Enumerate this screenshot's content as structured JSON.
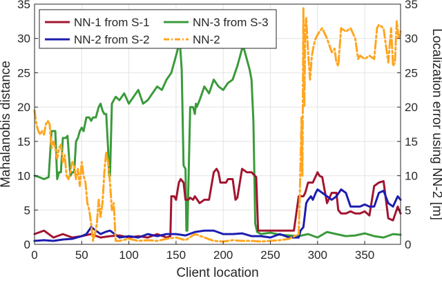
{
  "chart_data": {
    "type": "line",
    "title": "",
    "xlabel": "Client location",
    "ylabel_left": "Mahalanobis distance",
    "ylabel_right": "Localization error using NN-2 [m]",
    "xlim": [
      0,
      388
    ],
    "ylim_left": [
      0,
      35
    ],
    "ylim_right": [
      0,
      35
    ],
    "xticks": [
      "0",
      "50",
      "100",
      "150",
      "200",
      "250",
      "300",
      "350"
    ],
    "yticks_left": [
      "0",
      "5",
      "10",
      "15",
      "20",
      "25",
      "30",
      "35"
    ],
    "yticks_right": [
      "0",
      "5",
      "10",
      "15",
      "20",
      "25",
      "30",
      "35"
    ],
    "grid": true,
    "legend_position": "top-left",
    "series": [
      {
        "name": "NN-1 from S-1",
        "color": "#a2142f",
        "style": "solid",
        "axis": "left",
        "x": [
          0,
          10,
          20,
          30,
          40,
          50,
          60,
          70,
          80,
          90,
          100,
          110,
          120,
          130,
          140,
          144,
          145,
          148,
          150,
          153,
          155,
          158,
          160,
          163,
          165,
          168,
          170,
          175,
          180,
          185,
          190,
          193,
          195,
          197,
          200,
          203,
          205,
          210,
          213,
          215,
          220,
          225,
          230,
          235,
          237,
          240,
          245,
          250,
          255,
          260,
          265,
          270,
          275,
          280,
          285,
          287,
          290,
          295,
          300,
          302,
          305,
          310,
          315,
          320,
          322,
          325,
          330,
          335,
          340,
          345,
          350,
          355,
          360,
          365,
          370,
          375,
          380,
          385,
          388
        ],
        "y": [
          1.5,
          2,
          1,
          1.5,
          1,
          1.2,
          1.5,
          1,
          1.2,
          1.3,
          1,
          1.2,
          1,
          1.5,
          1,
          1.2,
          7,
          7,
          6.5,
          9,
          9.5,
          9,
          6.5,
          6.5,
          6.8,
          6.5,
          7,
          6,
          6.5,
          6.5,
          10.5,
          11,
          10.5,
          9,
          9,
          9,
          9.5,
          9.5,
          6.5,
          6.8,
          11,
          10.5,
          10.5,
          9.8,
          2,
          2,
          2,
          2,
          2,
          2,
          2,
          2,
          2,
          7,
          7,
          7.5,
          9,
          9,
          10.5,
          10,
          9.8,
          6,
          7.5,
          7.5,
          5,
          4.5,
          4.5,
          4.8,
          4.5,
          4.5,
          4.8,
          4.2,
          8.5,
          9,
          9.2,
          3.8,
          3.5,
          5.5,
          4.5
        ]
      },
      {
        "name": "NN-3 from S-3",
        "color": "#3a9a3a",
        "style": "solid",
        "axis": "left",
        "x": [
          0,
          5,
          10,
          15,
          18,
          20,
          22,
          24,
          26,
          28,
          30,
          33,
          35,
          38,
          40,
          42,
          44,
          46,
          48,
          50,
          52,
          55,
          58,
          60,
          62,
          65,
          68,
          70,
          72,
          74,
          76,
          78,
          79,
          80,
          82,
          84,
          86,
          90,
          95,
          100,
          105,
          110,
          115,
          120,
          125,
          130,
          135,
          140,
          145,
          150,
          152,
          154,
          156,
          158,
          160,
          161,
          162,
          165,
          168,
          170,
          171,
          172,
          175,
          180,
          185,
          190,
          195,
          200,
          205,
          210,
          215,
          220,
          222,
          225,
          228,
          230,
          232,
          234,
          236,
          240,
          250,
          260,
          270,
          280,
          290,
          300,
          310,
          320,
          330,
          340,
          350,
          360,
          370,
          380,
          388
        ],
        "y": [
          10,
          9.8,
          9.5,
          9.8,
          16.5,
          16.5,
          16.5,
          9.5,
          10.5,
          10.5,
          15.5,
          15.5,
          15.8,
          10,
          10.5,
          10.5,
          15,
          15.5,
          16.5,
          17,
          16.5,
          18.5,
          18.5,
          18,
          18.5,
          18.5,
          20,
          20.5,
          19.5,
          19,
          19,
          14,
          10,
          10,
          20.5,
          21,
          21.5,
          21,
          22,
          20.5,
          21.5,
          22.5,
          20.5,
          21,
          22,
          23,
          22.5,
          24,
          25,
          27.5,
          28.5,
          29.5,
          25.5,
          11.5,
          11,
          2,
          2,
          20,
          20,
          19,
          20.5,
          20,
          21,
          23,
          22,
          24,
          23,
          22.5,
          23.5,
          24,
          26,
          28.5,
          28.5,
          27,
          25.5,
          24,
          18,
          3,
          1.8,
          1.5,
          1.7,
          1.4,
          1.3,
          1.2,
          1.5,
          1,
          1.8,
          1.5,
          1.2,
          1.3,
          1.6,
          1.2,
          1,
          1.5,
          1.4
        ]
      },
      {
        "name": "NN-2 from S-2",
        "color": "#1c1cb0",
        "style": "solid",
        "axis": "left",
        "x": [
          0,
          10,
          20,
          30,
          40,
          50,
          55,
          60,
          65,
          70,
          75,
          80,
          85,
          90,
          100,
          110,
          120,
          130,
          140,
          150,
          160,
          170,
          180,
          190,
          200,
          210,
          220,
          230,
          240,
          250,
          260,
          270,
          280,
          282,
          285,
          288,
          290,
          293,
          295,
          298,
          300,
          305,
          310,
          315,
          320,
          325,
          330,
          335,
          340,
          345,
          350,
          355,
          360,
          365,
          370,
          375,
          380,
          385,
          388
        ],
        "y": [
          0.5,
          0.6,
          0.5,
          0.7,
          0.8,
          1.2,
          1.5,
          2.5,
          2,
          1.5,
          1.8,
          2,
          1.5,
          1,
          1.2,
          1,
          1.5,
          1.2,
          1.5,
          1.5,
          1.3,
          1.8,
          2,
          2,
          1.5,
          1.5,
          1.6,
          1.2,
          1.2,
          1,
          1.5,
          1,
          1,
          2,
          2.5,
          6,
          6.5,
          7,
          6.5,
          7.5,
          8,
          7.5,
          7,
          6.5,
          7,
          8,
          7.5,
          5.5,
          5.5,
          5.5,
          5.8,
          5.5,
          5.5,
          7.5,
          7.8,
          6,
          5.5,
          7,
          6.5
        ]
      },
      {
        "name": "NN-2",
        "color": "#ffa51f",
        "style": "dashed",
        "axis": "right",
        "x": [
          0,
          2,
          4,
          6,
          8,
          10,
          12,
          14,
          16,
          18,
          20,
          22,
          24,
          26,
          28,
          30,
          32,
          34,
          36,
          38,
          40,
          42,
          44,
          46,
          48,
          50,
          52,
          54,
          56,
          58,
          60,
          62,
          64,
          66,
          68,
          70,
          72,
          74,
          76,
          78,
          80,
          82,
          84,
          86,
          90,
          100,
          110,
          120,
          130,
          140,
          150,
          160,
          170,
          180,
          190,
          200,
          210,
          220,
          230,
          240,
          250,
          260,
          270,
          280,
          281,
          282,
          283,
          284,
          285,
          286,
          287,
          288,
          290,
          292,
          294,
          296,
          298,
          300,
          302,
          305,
          310,
          315,
          318,
          320,
          322,
          325,
          330,
          335,
          340,
          343,
          345,
          350,
          355,
          360,
          363,
          365,
          370,
          375,
          378,
          380,
          382,
          384,
          386,
          388
        ],
        "y": [
          19.5,
          17.5,
          16.5,
          16,
          16.5,
          16,
          17.5,
          18,
          17.5,
          14,
          15,
          14,
          12.5,
          14,
          14.5,
          12,
          13,
          10,
          9.5,
          10.5,
          12,
          11.5,
          9.5,
          11,
          8.5,
          12,
          10,
          9,
          6,
          5,
          3,
          0.5,
          1.5,
          3,
          6.5,
          4,
          6,
          10.5,
          13.5,
          12,
          9,
          5,
          6,
          0.5,
          0.5,
          0.8,
          0.5,
          0.6,
          0.5,
          0.8,
          1,
          0.6,
          1.5,
          1,
          0.5,
          0.4,
          0.6,
          0.5,
          0.5,
          0.4,
          0.5,
          0.6,
          0.8,
          1.5,
          6,
          12,
          18.5,
          10,
          34.5,
          20,
          31,
          33,
          28,
          24,
          27.5,
          29,
          30,
          30.5,
          31,
          31.5,
          30,
          28,
          28.5,
          26.5,
          26,
          31.5,
          31,
          31.5,
          30,
          27,
          27.5,
          27,
          27.5,
          27,
          31.5,
          32,
          31.5,
          26.5,
          31.5,
          26,
          26.5,
          32.5,
          30,
          31
        ]
      }
    ]
  }
}
